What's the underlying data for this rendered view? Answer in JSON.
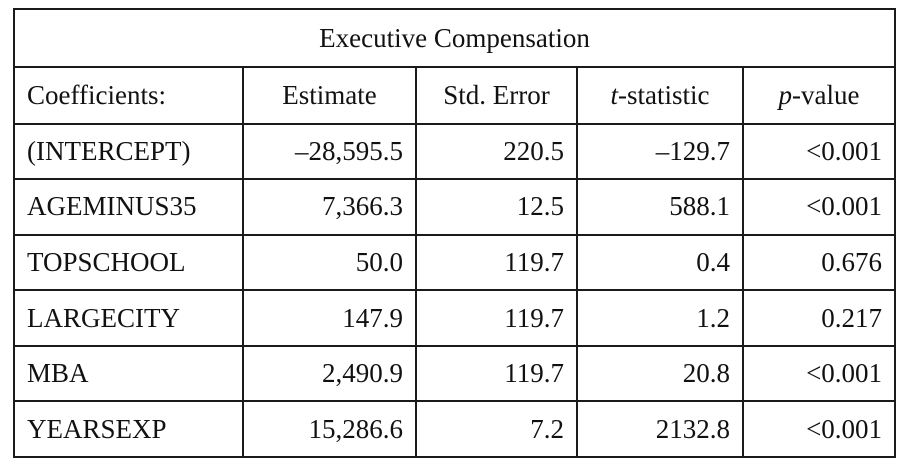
{
  "table": {
    "title": "Executive Compensation",
    "headers": {
      "coefficients": "Coefficients:",
      "estimate": "Estimate",
      "std_error": "Std. Error",
      "t_prefix": "t",
      "t_suffix": "-statistic",
      "p_prefix": "p",
      "p_suffix": "-value"
    },
    "rows": [
      {
        "name": "(INTERCEPT)",
        "estimate": "–28,595.5",
        "std_error": "220.5",
        "t_stat": "–129.7",
        "p_value": "<0.001"
      },
      {
        "name": "AGEMINUS35",
        "estimate": "7,366.3",
        "std_error": "12.5",
        "t_stat": "588.1",
        "p_value": "<0.001"
      },
      {
        "name": "TOPSCHOOL",
        "estimate": "50.0",
        "std_error": "119.7",
        "t_stat": "0.4",
        "p_value": "0.676"
      },
      {
        "name": "LARGECITY",
        "estimate": "147.9",
        "std_error": "119.7",
        "t_stat": "1.2",
        "p_value": "0.217"
      },
      {
        "name": "MBA",
        "estimate": "2,490.9",
        "std_error": "119.7",
        "t_stat": "20.8",
        "p_value": "<0.001"
      },
      {
        "name": "YEARSEXP",
        "estimate": "15,286.6",
        "std_error": "7.2",
        "t_stat": "2132.8",
        "p_value": "<0.001"
      }
    ]
  }
}
